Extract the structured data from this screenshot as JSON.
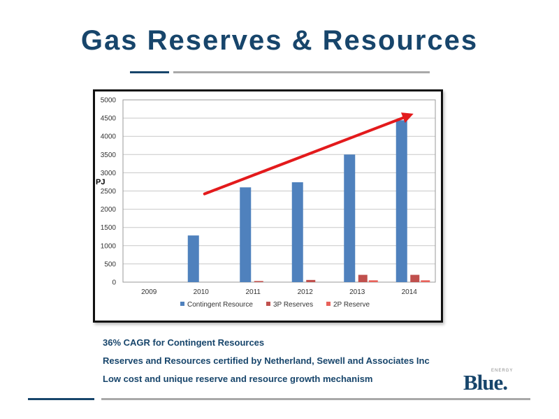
{
  "slide": {
    "title": "Gas Reserves & Resources",
    "bullets": [
      "36% CAGR for Contingent Resources",
      "Reserves and Resources certified by Netherland, Sewell and Associates Inc",
      "Low cost and unique reserve and resource growth mechanism"
    ],
    "logo": {
      "text": "Blue.",
      "small_text": "ENERGY"
    },
    "colors": {
      "title": "#17456b",
      "rule_dark": "#17456b",
      "rule_light": "#a9a9a9"
    }
  },
  "chart_data": {
    "type": "bar",
    "title": "",
    "xlabel": "",
    "ylabel": "PJ",
    "categories": [
      "2009",
      "2010",
      "2011",
      "2012",
      "2013",
      "2014"
    ],
    "ylim": [
      0,
      5000
    ],
    "yticks": [
      "0",
      "500",
      "1000",
      "1500",
      "2000",
      "2500",
      "3000",
      "3500",
      "4000",
      "4500",
      "5000"
    ],
    "grid": true,
    "legend_position": "bottom",
    "series": [
      {
        "name": "Contingent Resource",
        "color": "#4f81bd",
        "values": [
          0,
          1280,
          2600,
          2740,
          3500,
          4440
        ]
      },
      {
        "name": "3P Reserves",
        "color": "#c0504d",
        "values": [
          0,
          0,
          30,
          60,
          200,
          200
        ]
      },
      {
        "name": "2P Reserve",
        "color": "#e8615a",
        "values": [
          0,
          0,
          0,
          0,
          50,
          50
        ]
      }
    ],
    "annotation": {
      "type": "trend-arrow",
      "color": "#e31a1c",
      "from": {
        "x": "2010",
        "y": 2420
      },
      "to": {
        "x": "2014",
        "y": 4620
      }
    }
  }
}
